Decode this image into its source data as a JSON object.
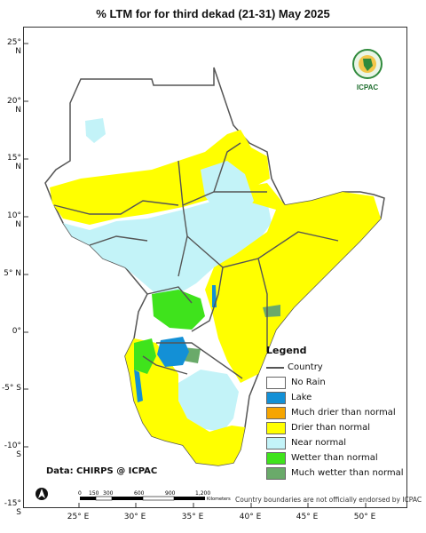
{
  "title": "% LTM  for   for  third dekad (21-31)  May 2025",
  "y_axis_labels": [
    "25° N",
    "20° N",
    "15° N",
    "10° N",
    "5° N",
    "0°",
    "-5° S",
    "-10° S",
    "-15° S"
  ],
  "x_axis_labels": [
    "25° E",
    "30° E",
    "35° E",
    "40° E",
    "45° E",
    "50° E"
  ],
  "legend": {
    "title": "Legend",
    "country_label": "Country",
    "items": [
      {
        "label": "No Rain",
        "color": "#ffffff"
      },
      {
        "label": "Lake",
        "color": "#1390d6"
      },
      {
        "label": "Much drier than normal",
        "color": "#f6a500"
      },
      {
        "label": "Drier than normal",
        "color": "#ffff00"
      },
      {
        "label": "Near normal",
        "color": "#c3f3f8"
      },
      {
        "label": "Wetter than normal",
        "color": "#3fe31c"
      },
      {
        "label": "Much wetter than normal",
        "color": "#6aaa6a"
      }
    ]
  },
  "credit": "Data: CHIRPS @ ICPAC",
  "endorsement": "Country boundaries are not officially endorsed by ICPAC",
  "scale_bar": {
    "labels": [
      "0",
      "150",
      "300",
      "600",
      "900",
      "1,200"
    ],
    "unit": "Kilometers"
  },
  "north_arrow": "N",
  "logo": {
    "top_text": "IGAD",
    "bottom_text": "ICPAC"
  },
  "colors": {
    "dry": "#ffff00",
    "near": "#c3f3f8",
    "wet": "#3fe31c",
    "much_wet": "#6aaa6a",
    "much_dry": "#f6a500",
    "lake": "#1390d6",
    "border": "#555555"
  }
}
